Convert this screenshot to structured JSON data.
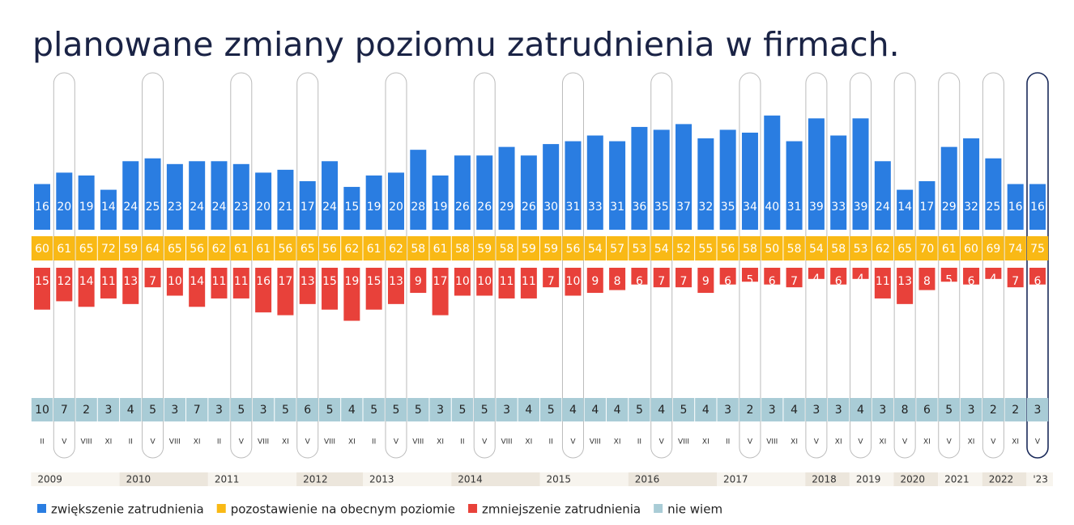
{
  "chart_data": {
    "type": "bar",
    "title": "planowane zmiany poziomu zatrudnienia w firmach.",
    "categories": [
      "II",
      "V",
      "VIII",
      "XI",
      "II",
      "V",
      "VIII",
      "XI",
      "II",
      "V",
      "VIII",
      "XI",
      "V",
      "VIII",
      "XI",
      "II",
      "V",
      "VIII",
      "XI",
      "II",
      "V",
      "VIII",
      "XI",
      "II",
      "V",
      "VIII",
      "XI",
      "II",
      "V",
      "VIII",
      "XI",
      "II",
      "V",
      "VIII",
      "XI",
      "V",
      "XI",
      "V",
      "XI",
      "V",
      "XI",
      "V",
      "XI",
      "V",
      "XI",
      "V"
    ],
    "years": [
      "2009",
      "2010",
      "2011",
      "2012",
      "2013",
      "2014",
      "2015",
      "2016",
      "2017",
      "2018",
      "2019",
      "2020",
      "2021",
      "2022",
      "'23"
    ],
    "series": [
      {
        "name": "zwiększenie zatrudnienia",
        "color": "#2a7de1",
        "values": [
          16,
          20,
          19,
          14,
          24,
          25,
          23,
          24,
          24,
          23,
          20,
          21,
          17,
          24,
          15,
          19,
          20,
          28,
          19,
          26,
          26,
          29,
          26,
          30,
          31,
          33,
          31,
          36,
          35,
          37,
          32,
          35,
          34,
          40,
          31,
          39,
          33,
          39,
          24,
          14,
          17,
          29,
          32,
          25,
          16,
          16
        ]
      },
      {
        "name": "pozostawienie na obecnym poziomie",
        "color": "#f9b915",
        "values": [
          60,
          61,
          65,
          72,
          59,
          64,
          65,
          56,
          62,
          61,
          61,
          56,
          65,
          56,
          62,
          61,
          62,
          58,
          61,
          58,
          59,
          58,
          59,
          59,
          56,
          54,
          57,
          53,
          54,
          52,
          55,
          56,
          58,
          50,
          58,
          54,
          58,
          53,
          62,
          65,
          70,
          61,
          60,
          69,
          74,
          75
        ]
      },
      {
        "name": "zmniejszenie zatrudnienia",
        "color": "#e8413a",
        "values": [
          15,
          12,
          14,
          11,
          13,
          7,
          10,
          14,
          11,
          11,
          16,
          17,
          13,
          15,
          19,
          15,
          13,
          9,
          17,
          10,
          10,
          11,
          11,
          7,
          10,
          9,
          8,
          6,
          7,
          7,
          9,
          6,
          5,
          6,
          7,
          4,
          6,
          4,
          11,
          13,
          8,
          5,
          6,
          4,
          7,
          6
        ]
      },
      {
        "name": "nie wiem",
        "color": "#a9ccd6",
        "values": [
          10,
          7,
          2,
          3,
          4,
          5,
          3,
          7,
          3,
          5,
          3,
          5,
          6,
          5,
          4,
          5,
          5,
          5,
          3,
          5,
          5,
          3,
          4,
          5,
          4,
          4,
          4,
          5,
          4,
          5,
          4,
          3,
          2,
          3,
          4,
          3,
          3,
          4,
          3,
          8,
          6,
          5,
          3,
          2,
          2,
          3
        ]
      }
    ]
  }
}
